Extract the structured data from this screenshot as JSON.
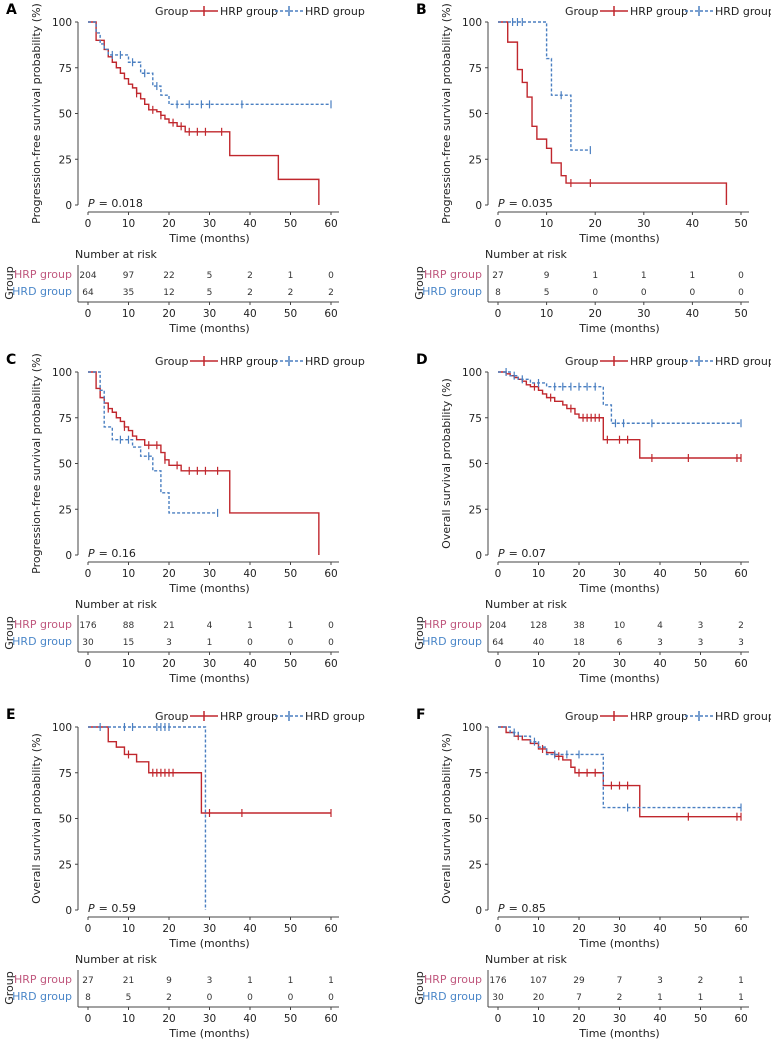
{
  "colors": {
    "hrp": "#c0272d",
    "hrd": "#4a7fc1",
    "hrp_label": "#c0587e",
    "hrd_label": "#4a86c8"
  },
  "common": {
    "legend_title": "Group",
    "hrp": "HRP group",
    "hrd": "HRD group",
    "xlabel": "Time (months)",
    "risk_title": "Number at risk",
    "risk_ylabel": "Group",
    "p_prefix": "P"
  },
  "chart_data": [
    {
      "panel": "A",
      "type": "line",
      "ylabel": "Progression-free survival probability (%)",
      "p_value": "= 0.018",
      "xlim": [
        0,
        60
      ],
      "xticks": [
        0,
        10,
        20,
        30,
        40,
        50,
        60
      ],
      "ylim": [
        0,
        100
      ],
      "yticks": [
        0,
        25,
        50,
        75,
        100
      ],
      "series": [
        {
          "name": "HRP group",
          "steps": [
            [
              0,
              100
            ],
            [
              2,
              90
            ],
            [
              4,
              85
            ],
            [
              5,
              81
            ],
            [
              6,
              78
            ],
            [
              7,
              75
            ],
            [
              8,
              72
            ],
            [
              9,
              69
            ],
            [
              10,
              66
            ],
            [
              11,
              64
            ],
            [
              12,
              61
            ],
            [
              13,
              58
            ],
            [
              14,
              55
            ],
            [
              15,
              52
            ],
            [
              17,
              51
            ],
            [
              18,
              49
            ],
            [
              19,
              47
            ],
            [
              20,
              45
            ],
            [
              22,
              43
            ],
            [
              24,
              40
            ],
            [
              35,
              27
            ],
            [
              47,
              14
            ],
            [
              57,
              0
            ]
          ],
          "censor": [
            12,
            16,
            18,
            21,
            23,
            25,
            27,
            29,
            33
          ]
        },
        {
          "name": "HRD group",
          "steps": [
            [
              0,
              100
            ],
            [
              2,
              94
            ],
            [
              3,
              88
            ],
            [
              4,
              85
            ],
            [
              5,
              82
            ],
            [
              10,
              78
            ],
            [
              13,
              72
            ],
            [
              16,
              65
            ],
            [
              18,
              60
            ],
            [
              20,
              55
            ],
            [
              60,
              55
            ]
          ],
          "censor": [
            6,
            8,
            11,
            14,
            17,
            22,
            25,
            28,
            30,
            38,
            60
          ]
        }
      ],
      "risk": {
        "times": [
          0,
          10,
          20,
          30,
          40,
          50,
          60
        ],
        "HRP group": [
          204,
          97,
          22,
          5,
          2,
          1,
          0
        ],
        "HRD group": [
          64,
          35,
          12,
          5,
          2,
          2,
          2
        ]
      }
    },
    {
      "panel": "B",
      "type": "line",
      "ylabel": "Progression-free survival probability (%)",
      "p_value": "= 0.035",
      "xlim": [
        0,
        50
      ],
      "xticks": [
        0,
        10,
        20,
        30,
        40,
        50
      ],
      "ylim": [
        0,
        100
      ],
      "yticks": [
        0,
        25,
        50,
        75,
        100
      ],
      "series": [
        {
          "name": "HRP group",
          "steps": [
            [
              0,
              100
            ],
            [
              2,
              89
            ],
            [
              4,
              74
            ],
            [
              5,
              67
            ],
            [
              6,
              59
            ],
            [
              7,
              43
            ],
            [
              8,
              36
            ],
            [
              10,
              31
            ],
            [
              11,
              23
            ],
            [
              13,
              16
            ],
            [
              14,
              12
            ],
            [
              47,
              12
            ],
            [
              47,
              0
            ]
          ],
          "censor": [
            15,
            19
          ]
        },
        {
          "name": "HRD group",
          "steps": [
            [
              0,
              100
            ],
            [
              10,
              80
            ],
            [
              11,
              60
            ],
            [
              15,
              30
            ],
            [
              19,
              30
            ]
          ],
          "censor": [
            3,
            4,
            5,
            13,
            19
          ]
        }
      ],
      "risk": {
        "times": [
          0,
          10,
          20,
          30,
          40,
          50
        ],
        "HRP group": [
          27,
          9,
          1,
          1,
          1,
          0
        ],
        "HRD group": [
          8,
          5,
          0,
          0,
          0,
          0
        ]
      }
    },
    {
      "panel": "C",
      "type": "line",
      "ylabel": "Progression-free survival probability (%)",
      "p_value": "= 0.16",
      "xlim": [
        0,
        60
      ],
      "xticks": [
        0,
        10,
        20,
        30,
        40,
        50,
        60
      ],
      "ylim": [
        0,
        100
      ],
      "yticks": [
        0,
        25,
        50,
        75,
        100
      ],
      "series": [
        {
          "name": "HRP group",
          "steps": [
            [
              0,
              100
            ],
            [
              2,
              91
            ],
            [
              3,
              86
            ],
            [
              4,
              83
            ],
            [
              5,
              80
            ],
            [
              6,
              78
            ],
            [
              7,
              75
            ],
            [
              8,
              73
            ],
            [
              9,
              70
            ],
            [
              10,
              68
            ],
            [
              11,
              65
            ],
            [
              12,
              63
            ],
            [
              14,
              60
            ],
            [
              18,
              56
            ],
            [
              19,
              52
            ],
            [
              20,
              49
            ],
            [
              23,
              46
            ],
            [
              35,
              23
            ],
            [
              57,
              0
            ]
          ],
          "censor": [
            5,
            9,
            15,
            17,
            19,
            22,
            25,
            27,
            29,
            32
          ]
        },
        {
          "name": "HRD group",
          "steps": [
            [
              0,
              100
            ],
            [
              3,
              90
            ],
            [
              4,
              70
            ],
            [
              6,
              63
            ],
            [
              11,
              59
            ],
            [
              13,
              54
            ],
            [
              16,
              46
            ],
            [
              18,
              34
            ],
            [
              20,
              23
            ],
            [
              32,
              23
            ]
          ],
          "censor": [
            8,
            10,
            15,
            32
          ]
        }
      ],
      "risk": {
        "times": [
          0,
          10,
          20,
          30,
          40,
          50,
          60
        ],
        "HRP group": [
          176,
          88,
          21,
          4,
          1,
          1,
          0
        ],
        "HRD group": [
          30,
          15,
          3,
          1,
          0,
          0,
          0
        ]
      }
    },
    {
      "panel": "D",
      "type": "line",
      "ylabel": "Overall survival probability (%)",
      "p_value": "= 0.07",
      "xlim": [
        0,
        60
      ],
      "xticks": [
        0,
        10,
        20,
        30,
        40,
        50,
        60
      ],
      "ylim": [
        0,
        100
      ],
      "yticks": [
        0,
        25,
        50,
        75,
        100
      ],
      "series": [
        {
          "name": "HRP group",
          "steps": [
            [
              0,
              100
            ],
            [
              2,
              99
            ],
            [
              3,
              98
            ],
            [
              4,
              97
            ],
            [
              5,
              96
            ],
            [
              6,
              95
            ],
            [
              7,
              93
            ],
            [
              8,
              92
            ],
            [
              10,
              90
            ],
            [
              11,
              88
            ],
            [
              12,
              86
            ],
            [
              14,
              84
            ],
            [
              16,
              82
            ],
            [
              17,
              80
            ],
            [
              19,
              77
            ],
            [
              20,
              75
            ],
            [
              26,
              63
            ],
            [
              35,
              53
            ],
            [
              60,
              53
            ]
          ],
          "censor": [
            9,
            13,
            18,
            21,
            22,
            23,
            24,
            25,
            27,
            30,
            32,
            38,
            47,
            59,
            60
          ]
        },
        {
          "name": "HRD group",
          "steps": [
            [
              0,
              100
            ],
            [
              3,
              98
            ],
            [
              5,
              96
            ],
            [
              8,
              94
            ],
            [
              12,
              92
            ],
            [
              26,
              82
            ],
            [
              28,
              72
            ],
            [
              60,
              72
            ]
          ],
          "censor": [
            2,
            4,
            6,
            10,
            14,
            16,
            18,
            20,
            22,
            24,
            29,
            31,
            38,
            60
          ]
        }
      ],
      "risk": {
        "times": [
          0,
          10,
          20,
          30,
          40,
          50,
          60
        ],
        "HRP group": [
          204,
          128,
          38,
          10,
          4,
          3,
          2
        ],
        "HRD group": [
          64,
          40,
          18,
          6,
          3,
          3,
          3
        ]
      }
    },
    {
      "panel": "E",
      "type": "line",
      "ylabel": "Overall survival probability (%)",
      "p_value": "= 0.59",
      "xlim": [
        0,
        60
      ],
      "xticks": [
        0,
        10,
        20,
        30,
        40,
        50,
        60
      ],
      "ylim": [
        0,
        100
      ],
      "yticks": [
        0,
        25,
        50,
        75,
        100
      ],
      "series": [
        {
          "name": "HRP group",
          "steps": [
            [
              0,
              100
            ],
            [
              5,
              92
            ],
            [
              7,
              89
            ],
            [
              9,
              85
            ],
            [
              12,
              81
            ],
            [
              15,
              75
            ],
            [
              28,
              75
            ],
            [
              28,
              53
            ],
            [
              60,
              53
            ]
          ],
          "censor": [
            10,
            16,
            17,
            18,
            19,
            20,
            21,
            30,
            38,
            60
          ]
        },
        {
          "name": "HRD group",
          "steps": [
            [
              0,
              100
            ],
            [
              29,
              100
            ],
            [
              29,
              0
            ]
          ],
          "censor": [
            3,
            9,
            11,
            17,
            18,
            19,
            20
          ]
        }
      ],
      "risk": {
        "times": [
          0,
          10,
          20,
          30,
          40,
          50,
          60
        ],
        "HRP group": [
          27,
          21,
          9,
          3,
          1,
          1,
          1
        ],
        "HRD group": [
          8,
          5,
          2,
          0,
          0,
          0,
          0
        ]
      }
    },
    {
      "panel": "F",
      "type": "line",
      "ylabel": "Overall survival probability (%)",
      "p_value": "= 0.85",
      "xlim": [
        0,
        60
      ],
      "xticks": [
        0,
        10,
        20,
        30,
        40,
        50,
        60
      ],
      "ylim": [
        0,
        100
      ],
      "yticks": [
        0,
        25,
        50,
        75,
        100
      ],
      "series": [
        {
          "name": "HRP group",
          "steps": [
            [
              0,
              100
            ],
            [
              2,
              97
            ],
            [
              4,
              95
            ],
            [
              6,
              93
            ],
            [
              8,
              91
            ],
            [
              10,
              88
            ],
            [
              12,
              86
            ],
            [
              14,
              84
            ],
            [
              16,
              82
            ],
            [
              18,
              78
            ],
            [
              19,
              75
            ],
            [
              26,
              68
            ],
            [
              35,
              51
            ],
            [
              60,
              51
            ]
          ],
          "censor": [
            5,
            11,
            15,
            20,
            22,
            24,
            28,
            30,
            32,
            47,
            59,
            60
          ]
        },
        {
          "name": "HRD group",
          "steps": [
            [
              0,
              100
            ],
            [
              3,
              97
            ],
            [
              5,
              95
            ],
            [
              8,
              92
            ],
            [
              10,
              89
            ],
            [
              12,
              85
            ],
            [
              26,
              85
            ],
            [
              26,
              56
            ],
            [
              60,
              56
            ]
          ],
          "censor": [
            4,
            9,
            14,
            17,
            20,
            32,
            60
          ]
        }
      ],
      "risk": {
        "times": [
          0,
          10,
          20,
          30,
          40,
          50,
          60
        ],
        "HRP group": [
          176,
          107,
          29,
          7,
          3,
          2,
          1
        ],
        "HRD group": [
          30,
          20,
          7,
          2,
          1,
          1,
          1
        ]
      }
    }
  ]
}
